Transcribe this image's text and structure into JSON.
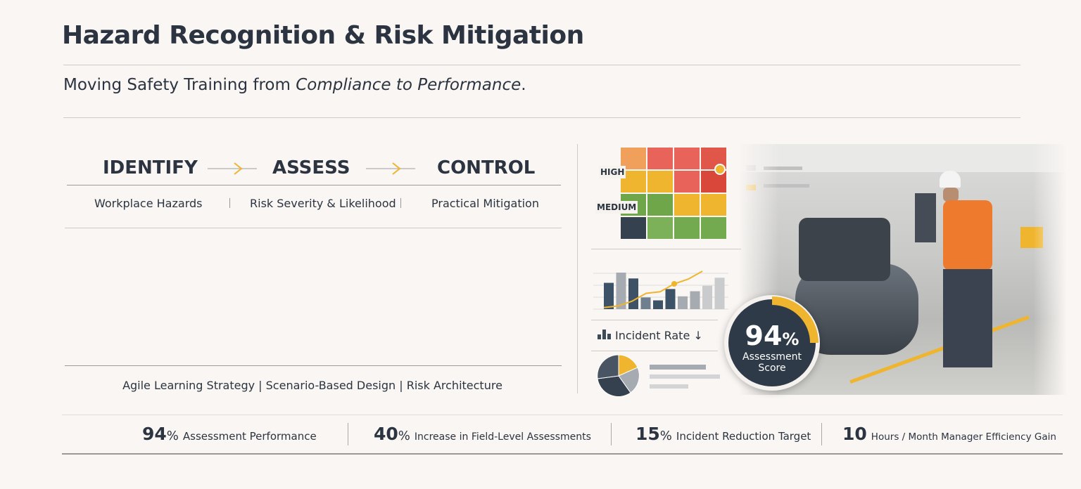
{
  "header": {
    "title": "Hazard Recognition & Risk Mitigation",
    "subtitle_prefix": "Moving Safety Training from ",
    "subtitle_emphasis": "Compliance to Performance",
    "subtitle_suffix": "."
  },
  "steps": [
    {
      "label": "IDENTIFY",
      "sub": "Workplace Hazards"
    },
    {
      "label": "ASSESS",
      "sub": "Risk Severity & Likelihood"
    },
    {
      "label": "CONTROL",
      "sub": "Practical Mitigation"
    }
  ],
  "footer_tags": "Agile Learning Strategy | Scenario-Based Design | Risk Architecture",
  "stats": [
    {
      "value": "94",
      "unit": "%",
      "label": "Assessment Performance"
    },
    {
      "value": "40",
      "unit": "%",
      "label": "Increase in Field-Level Assessments"
    },
    {
      "value": "15",
      "unit": "%",
      "label": "Incident Reduction Target"
    },
    {
      "value": "10",
      "unit": "",
      "label": "Hours / Month Manager Efficiency Gain"
    }
  ],
  "risk_matrix": {
    "label_high": "HIGH",
    "label_medium": "MEDIUM",
    "colors": [
      [
        "#f0a05a",
        "#e8645a",
        "#e8645a",
        "#e0574a"
      ],
      [
        "#f0b52e",
        "#f0b52e",
        "#e8645a",
        "#d9473a"
      ],
      [
        "#6fa64a",
        "#6fa64a",
        "#f0b52e",
        "#f0b52e"
      ],
      [
        "#36414f",
        "#7cb15a",
        "#73aa50",
        "#73aa50"
      ]
    ]
  },
  "mini_chart": {
    "bars": [
      0.72,
      1.0,
      0.84,
      0.32,
      0.24,
      0.55,
      0.35,
      0.49,
      0.64,
      0.86
    ],
    "bar_colors": [
      "#3d5266",
      "#a6abb1",
      "#3d5266",
      "#6f7f8f",
      "#3d5266",
      "#3d5266",
      "#a6abb1",
      "#a6abb1",
      "#c9cbcd",
      "#c9cbcd"
    ],
    "trend": [
      0.05,
      0.1,
      0.25,
      0.5,
      0.55,
      0.8,
      0.95,
      1.2
    ],
    "accent": "#f0b52e"
  },
  "incident_label": "Incident Rate ↓",
  "score": {
    "value": "94",
    "unit": "%",
    "label1": "Assessment",
    "label2": "Score"
  },
  "accent": "#f0b52e",
  "dark": "#2e3a47"
}
